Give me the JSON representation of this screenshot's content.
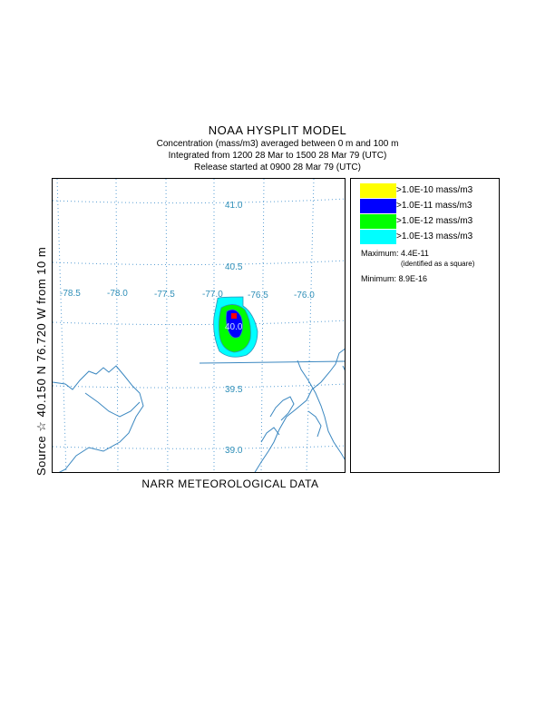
{
  "header": {
    "title": "NOAA HYSPLIT MODEL",
    "concentration_line": "Concentration  (mass/m3) averaged between     0 m and   100 m",
    "integration_line": "Integrated from  1200 28 Mar to 1500 28 Mar 79 (UTC)",
    "release_line": "Release started at 0900 28 Mar 79 (UTC)"
  },
  "map": {
    "longitude_labels": [
      "-78.5",
      "-78.0",
      "-77.5",
      "-77.0",
      "-76.5",
      "-76.0"
    ],
    "latitude_labels": [
      "41.0",
      "40.5",
      "40.0",
      "39.5",
      "39.0"
    ],
    "plume_center_label": "40.0",
    "colors": {
      "grid": "#5a9fd4",
      "label": "#2f8fb8",
      "coast": "#3a87c0",
      "contour_cyan": "#00ffff",
      "contour_green": "#00ff00",
      "contour_blue": "#0000ff",
      "contour_yellow": "#ffff00",
      "max_square": "#ff0000"
    }
  },
  "legend": {
    "items": [
      {
        "label": ">1.0E-10 mass/m3",
        "color": "#ffff00"
      },
      {
        "label": ">1.0E-11 mass/m3",
        "color": "#0000ff"
      },
      {
        "label": ">1.0E-12 mass/m3",
        "color": "#00ff00"
      },
      {
        "label": ">1.0E-13 mass/m3",
        "color": "#00ffff"
      }
    ],
    "maximum": "Maximum: 4.4E-11",
    "maximum_note": "(identified as a square)",
    "minimum": "Minimum: 8.9E-16"
  },
  "source_label": "Source ☆ 40.150  N  76.720  W     from   10 m",
  "footer": "NARR METEOROLOGICAL DATA"
}
